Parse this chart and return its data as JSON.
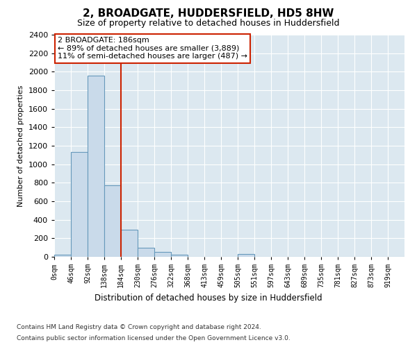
{
  "title": "2, BROADGATE, HUDDERSFIELD, HD5 8HW",
  "subtitle": "Size of property relative to detached houses in Huddersfield",
  "xlabel": "Distribution of detached houses by size in Huddersfield",
  "ylabel": "Number of detached properties",
  "footnote1": "Contains HM Land Registry data © Crown copyright and database right 2024.",
  "footnote2": "Contains public sector information licensed under the Open Government Licence v3.0.",
  "bar_labels": [
    "0sqm",
    "46sqm",
    "92sqm",
    "138sqm",
    "184sqm",
    "230sqm",
    "276sqm",
    "322sqm",
    "368sqm",
    "413sqm",
    "459sqm",
    "505sqm",
    "551sqm",
    "597sqm",
    "643sqm",
    "689sqm",
    "735sqm",
    "781sqm",
    "827sqm",
    "873sqm",
    "919sqm"
  ],
  "bar_values": [
    25,
    1130,
    1960,
    770,
    290,
    95,
    50,
    25,
    0,
    0,
    0,
    30,
    0,
    0,
    0,
    0,
    0,
    0,
    0,
    0,
    0
  ],
  "bar_color": "#c9daea",
  "bar_edge_color": "#6699bb",
  "annotation_line1": "2 BROADGATE: 186sqm",
  "annotation_line2": "← 89% of detached houses are smaller (3,889)",
  "annotation_line3": "11% of semi-detached houses are larger (487) →",
  "vline_color": "#cc2200",
  "annotation_box_edge": "#cc2200",
  "ylim": [
    0,
    2400
  ],
  "yticks": [
    0,
    200,
    400,
    600,
    800,
    1000,
    1200,
    1400,
    1600,
    1800,
    2000,
    2200,
    2400
  ],
  "bin_width": 46,
  "n_bars": 21,
  "vline_bin": 4,
  "plot_bg_color": "#dce8f0",
  "fig_bg_color": "#ffffff",
  "grid_color": "#ffffff",
  "title_fontsize": 11,
  "subtitle_fontsize": 9,
  "ylabel_fontsize": 8,
  "xlabel_fontsize": 8.5,
  "tick_fontsize": 8,
  "xtick_fontsize": 7,
  "annot_fontsize": 8,
  "footnote_fontsize": 6.5
}
